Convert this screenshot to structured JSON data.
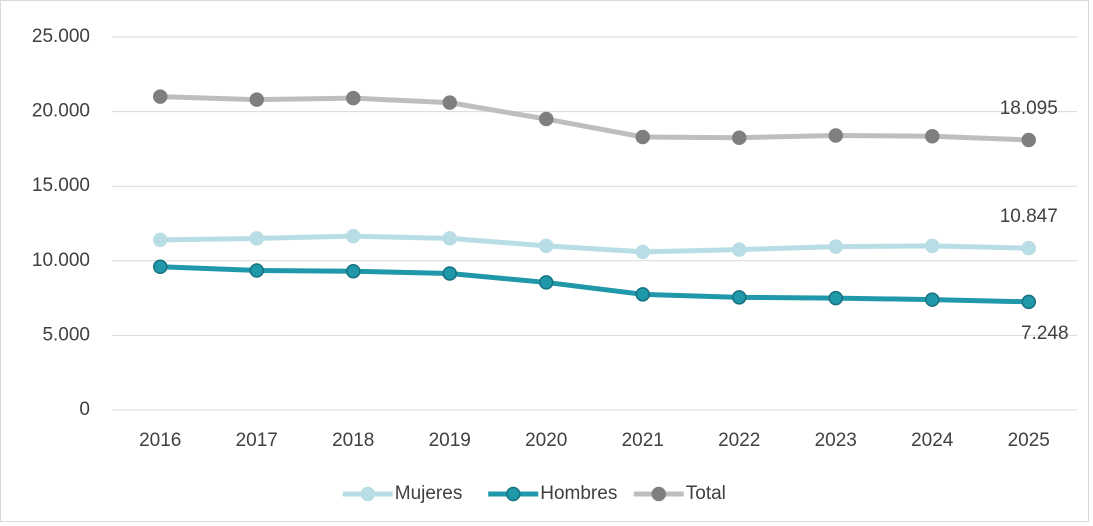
{
  "chart_data": {
    "type": "line",
    "categories": [
      "2016",
      "2017",
      "2018",
      "2019",
      "2020",
      "2021",
      "2022",
      "2023",
      "2024",
      "2025"
    ],
    "series": [
      {
        "name": "Mujeres",
        "color": "#b9dde4",
        "marker_color": "#b9dde4",
        "values": [
          11400,
          11500,
          11650,
          11500,
          11000,
          10600,
          10750,
          10950,
          11000,
          10847
        ],
        "value_labels": [
          null,
          null,
          null,
          null,
          null,
          null,
          null,
          null,
          null,
          "10.847"
        ]
      },
      {
        "name": "Hombres",
        "color": "#1f98a9",
        "marker_color": "#1f98a9",
        "values": [
          9600,
          9350,
          9300,
          9150,
          8550,
          7750,
          7550,
          7500,
          7400,
          7248
        ],
        "value_labels": [
          null,
          null,
          null,
          null,
          null,
          null,
          null,
          null,
          null,
          "7.248"
        ]
      },
      {
        "name": "Total",
        "color": "#bebec0",
        "marker_color": "#7f7f7f",
        "values": [
          21000,
          20800,
          20900,
          20600,
          19500,
          18300,
          18250,
          18400,
          18350,
          18095
        ],
        "value_labels": [
          null,
          null,
          null,
          null,
          null,
          null,
          null,
          null,
          null,
          "18.095"
        ]
      }
    ],
    "ylim": [
      0,
      25000
    ],
    "yticks": [
      0,
      {
        "value": 5000,
        "label": "5.000"
      },
      {
        "value": 10000,
        "label": "10.000"
      },
      {
        "value": 15000,
        "label": "15.000"
      },
      {
        "value": 20000,
        "label": "20.000"
      },
      {
        "value": 25000,
        "label": "25.000"
      }
    ],
    "grid": true,
    "legend": "bottom"
  }
}
